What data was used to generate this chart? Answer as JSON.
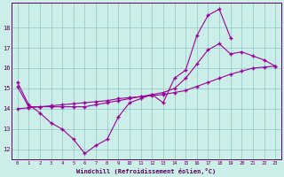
{
  "xlabel": "Windchill (Refroidissement éolien,°C)",
  "bg_color": "#cceee8",
  "grid_color": "#99cccc",
  "line_color": "#990099",
  "line1_x": [
    0,
    1,
    2,
    3,
    4,
    5,
    6,
    7,
    8,
    9,
    10,
    11,
    12,
    13,
    14,
    15,
    16,
    17,
    18,
    19
  ],
  "line1_y": [
    15.3,
    14.2,
    13.8,
    13.3,
    13.0,
    12.5,
    11.8,
    12.2,
    12.5,
    13.6,
    14.3,
    14.5,
    14.7,
    14.3,
    15.5,
    15.9,
    17.6,
    18.6,
    18.9,
    17.5
  ],
  "line2_x": [
    0,
    1,
    2,
    3,
    4,
    5,
    6,
    7,
    8,
    9,
    10,
    11,
    12,
    13,
    14,
    15,
    16,
    17,
    18,
    19,
    20,
    21,
    22,
    23
  ],
  "line2_y": [
    15.1,
    14.1,
    14.1,
    14.1,
    14.1,
    14.1,
    14.1,
    14.2,
    14.3,
    14.4,
    14.5,
    14.6,
    14.7,
    14.8,
    15.0,
    15.5,
    16.2,
    16.9,
    17.2,
    16.7,
    16.8,
    16.6,
    16.4,
    16.1
  ],
  "line3_x": [
    0,
    1,
    2,
    3,
    4,
    5,
    6,
    7,
    8,
    9,
    10,
    11,
    12,
    13,
    14,
    15,
    16,
    17,
    18,
    19,
    20,
    21,
    22,
    23
  ],
  "line3_y": [
    14.0,
    14.05,
    14.1,
    14.15,
    14.2,
    14.25,
    14.3,
    14.35,
    14.4,
    14.5,
    14.55,
    14.6,
    14.65,
    14.7,
    14.8,
    14.9,
    15.1,
    15.3,
    15.5,
    15.7,
    15.85,
    16.0,
    16.05,
    16.1
  ],
  "ylim": [
    11.5,
    19.2
  ],
  "yticks": [
    12,
    13,
    14,
    15,
    16,
    17,
    18
  ],
  "xticks": [
    0,
    1,
    2,
    3,
    4,
    5,
    6,
    7,
    8,
    9,
    10,
    11,
    12,
    13,
    14,
    15,
    16,
    17,
    18,
    19,
    20,
    21,
    22,
    23
  ]
}
